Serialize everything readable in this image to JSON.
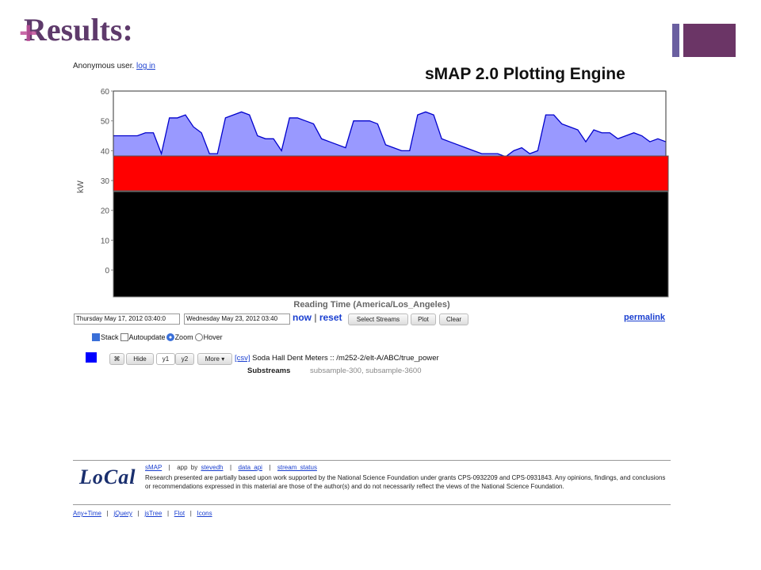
{
  "slide": {
    "title": "Results:",
    "mark": "+"
  },
  "header": {
    "user": "Anonymous user.",
    "login": "log in",
    "app_title": "sMAP 2.0 Plotting Engine"
  },
  "plot": {
    "type": "area",
    "ylabel": "kW",
    "xlabel": "Reading Time (America/Los_Angeles)",
    "ylim": [
      -9,
      60
    ],
    "yticks": [
      0,
      10,
      20,
      30,
      40,
      50,
      60
    ],
    "color": "#0000cc",
    "fill": "#9999ff",
    "values": [
      45,
      45,
      45,
      45,
      46,
      46,
      39,
      51,
      51,
      52,
      48,
      46,
      39,
      39,
      51,
      52,
      53,
      52,
      45,
      44,
      44,
      40,
      51,
      51,
      50,
      49,
      44,
      43,
      42,
      41,
      50,
      50,
      50,
      49,
      42,
      41,
      40,
      40,
      52,
      53,
      52,
      44,
      43,
      42,
      41,
      40,
      39,
      39,
      39,
      38,
      40,
      41,
      39,
      40,
      52,
      52,
      49,
      48,
      47,
      43,
      47,
      46,
      46,
      44,
      45,
      46,
      45,
      43,
      44,
      43
    ]
  },
  "controls": {
    "start": "Thursday May 17, 2012 03:40:0",
    "end": "Wednesday May 23, 2012 03:40",
    "now": "now",
    "sep": "|",
    "reset": "reset",
    "buttons": [
      "Select Streams",
      "Plot",
      "Clear"
    ],
    "permalink": "permalink",
    "options": [
      "Stack",
      "Autoupdate",
      "Zoom",
      "Hover"
    ]
  },
  "stream": {
    "color": "#0000ff",
    "icon": "⌘",
    "buttons": [
      "Hide",
      "y1",
      "y2",
      "More ▾"
    ],
    "csv": "[csv]",
    "name": "Soda Hall Dent Meters :: /m252-2/elt-A/ABC/true_power",
    "substreams_label": "Substreams",
    "substreams": [
      "subsample-300",
      "subsample-3600"
    ],
    "comma": ","
  },
  "footer": {
    "logo": "LoCal",
    "nav": [
      "sMAP",
      "|",
      "app by",
      "stevedh",
      "|",
      "data api",
      "|",
      "stream status"
    ],
    "text": "Research presented are partially based upon work supported by the National Science Foundation under grants CPS-0932209 and CPS-0931843. Any opinions, findings, and conclusions or recommendations expressed in this material are those of the author(s) and do not necessarily reflect the views of the National Science Foundation.",
    "links": [
      "Any+Time",
      "|",
      "jQuery",
      "|",
      "jsTree",
      "|",
      "Flot",
      "|",
      "Icons"
    ]
  }
}
